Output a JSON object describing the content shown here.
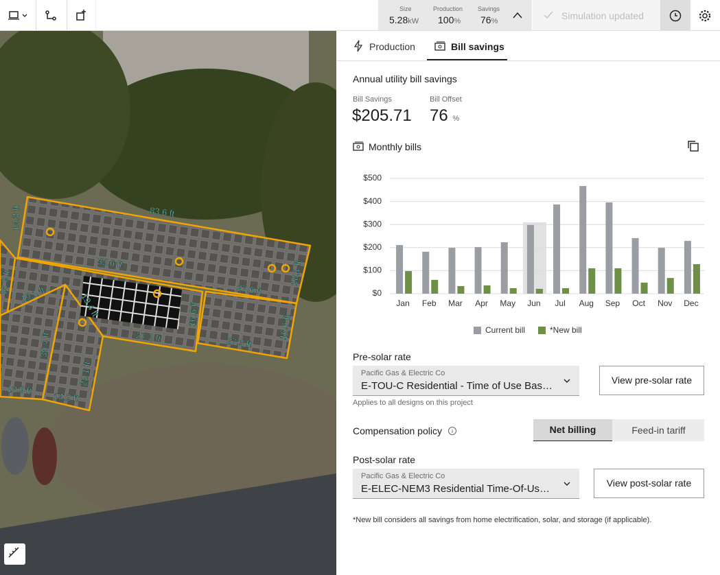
{
  "toolbar": {
    "stats": [
      {
        "label": "Size",
        "value": "5.28",
        "unit": "kW"
      },
      {
        "label": "Production",
        "value": "100",
        "unit": "%"
      },
      {
        "label": "Savings",
        "value": "76",
        "unit": "%"
      }
    ],
    "status": "Simulation updated"
  },
  "map": {
    "labels": [
      "83.6 ft",
      "14.3 ft",
      "55.6 ft",
      "15.9 ft",
      "19.1 ft",
      "19.4 ft",
      "27.6 ft",
      "18.1 ft",
      "16.6 ft",
      "27.2 ft",
      "27.3 ft",
      "16.6 ft",
      "35.4 ft",
      "22.1 ft",
      "13.9 ft",
      "14.2 ft"
    ]
  },
  "tabs": [
    "Production",
    "Bill savings"
  ],
  "summary": {
    "title": "Annual utility bill savings",
    "bill_savings_label": "Bill Savings",
    "bill_savings": "$205.71",
    "bill_offset_label": "Bill Offset",
    "bill_offset": "76",
    "bill_offset_unit": "%"
  },
  "monthly_bills_title": "Monthly bills",
  "chart_data": {
    "type": "bar",
    "categories": [
      "Jan",
      "Feb",
      "Mar",
      "Apr",
      "May",
      "Jun",
      "Jul",
      "Aug",
      "Sep",
      "Oct",
      "Nov",
      "Dec"
    ],
    "series": [
      {
        "name": "Current bill",
        "color": "#9a9ea3",
        "values": [
          211,
          182,
          199,
          202,
          223,
          298,
          387,
          467,
          396,
          241,
          199,
          229
        ]
      },
      {
        "name": "*New bill",
        "color": "#6e8f45",
        "values": [
          98,
          60,
          33,
          36,
          24,
          21,
          24,
          110,
          110,
          48,
          68,
          128
        ]
      }
    ],
    "ylim": [
      0,
      500
    ],
    "yticks": [
      {
        "value": 0,
        "label": "$0"
      },
      {
        "value": 100,
        "label": "$100"
      },
      {
        "value": 200,
        "label": "$200"
      },
      {
        "value": 300,
        "label": "$300"
      },
      {
        "value": 400,
        "label": "$400"
      },
      {
        "value": 500,
        "label": "$500"
      }
    ],
    "grid": true,
    "legend": "bottom"
  },
  "pre_solar": {
    "label": "Pre-solar rate",
    "utility": "Pacific Gas & Electric Co",
    "rate": "E-TOU-C Residential - Time of Use Bas…",
    "note": "Applies to all designs on this project",
    "button": "View pre-solar rate"
  },
  "compensation": {
    "label": "Compensation policy",
    "options": [
      "Net billing",
      "Feed-in tariff"
    ]
  },
  "post_solar": {
    "label": "Post-solar rate",
    "utility": "Pacific Gas & Electric Co",
    "rate": "E-ELEC-NEM3 Residential Time-Of-Us…",
    "button": "View post-solar rate"
  },
  "footnote": "*New bill considers all savings from home electrification, solar, and storage (if applicable)."
}
